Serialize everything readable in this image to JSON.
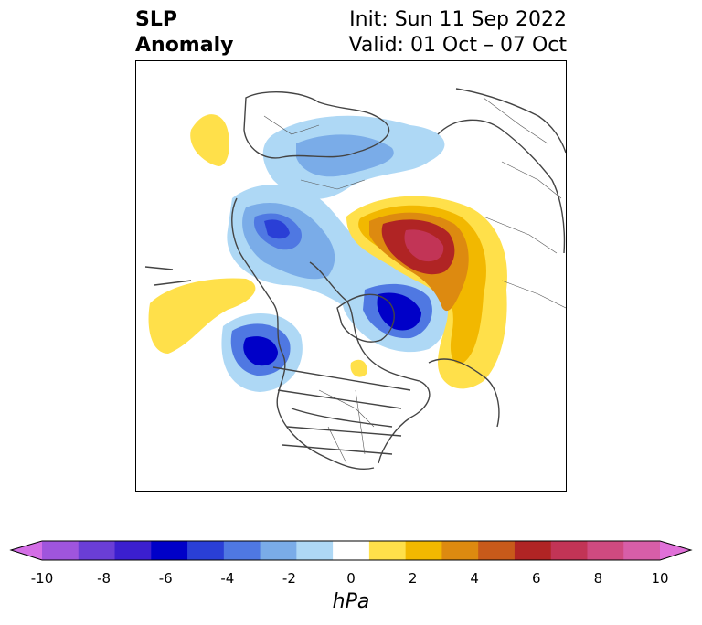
{
  "title": {
    "left_line1": "SLP",
    "left_line2": "Anomaly",
    "right_line1": "Init: Sun 11 Sep 2022",
    "right_line2": "Valid: 01 Oct – 07 Oct"
  },
  "colorbar": {
    "ticks": [
      "-10",
      "-8",
      "-6",
      "-4",
      "-2",
      "0",
      "2",
      "4",
      "6",
      "8",
      "10"
    ],
    "unit": "hPa",
    "colors": [
      "#d46ee6",
      "#9f55dd",
      "#6a3ed6",
      "#3b1fcf",
      "#0000c8",
      "#2a3fd6",
      "#4f78e2",
      "#7aace8",
      "#aed8f5",
      "#ffffff",
      "#ffe04a",
      "#f2b800",
      "#dd8a10",
      "#c85a1a",
      "#b02424",
      "#c23456",
      "#cf4a80",
      "#d75ea8",
      "#e070d8"
    ],
    "extend": "both"
  }
}
